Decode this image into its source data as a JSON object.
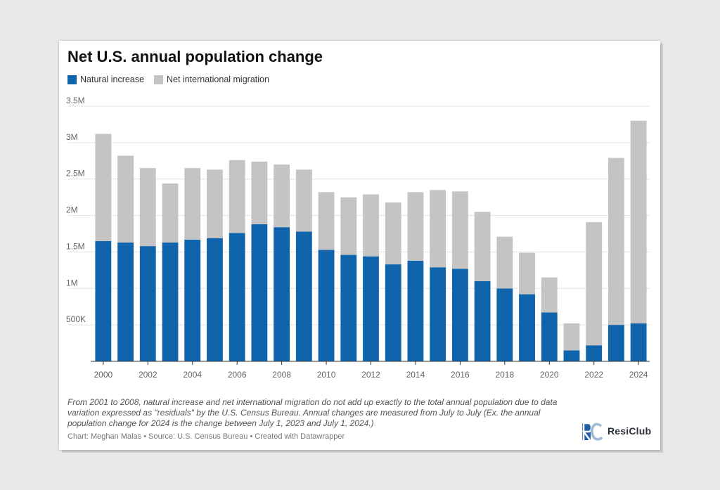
{
  "chart_data": {
    "type": "bar",
    "stacked": true,
    "title": "Net U.S. annual population change",
    "categories": [
      "2000",
      "2001",
      "2002",
      "2003",
      "2004",
      "2005",
      "2006",
      "2007",
      "2008",
      "2009",
      "2010",
      "2011",
      "2012",
      "2013",
      "2014",
      "2015",
      "2016",
      "2017",
      "2018",
      "2019",
      "2020",
      "2021",
      "2022",
      "2023",
      "2024"
    ],
    "x_tick_labels": [
      "2000",
      "2002",
      "2004",
      "2006",
      "2008",
      "2010",
      "2012",
      "2014",
      "2016",
      "2018",
      "2020",
      "2022",
      "2024"
    ],
    "series": [
      {
        "name": "Natural increase",
        "color": "#1064ab",
        "values": [
          1650000,
          1630000,
          1580000,
          1630000,
          1670000,
          1690000,
          1760000,
          1880000,
          1840000,
          1780000,
          1530000,
          1460000,
          1440000,
          1330000,
          1380000,
          1290000,
          1270000,
          1100000,
          1000000,
          920000,
          670000,
          150000,
          220000,
          500000,
          520000
        ]
      },
      {
        "name": "Net international migration",
        "color": "#c4c4c4",
        "values": [
          1470000,
          1190000,
          1070000,
          810000,
          980000,
          940000,
          1000000,
          860000,
          860000,
          850000,
          790000,
          790000,
          850000,
          850000,
          940000,
          1060000,
          1060000,
          950000,
          710000,
          570000,
          480000,
          370000,
          1690000,
          2290000,
          2780000
        ]
      }
    ],
    "ylim": [
      0,
      3500000
    ],
    "y_ticks": [
      {
        "value": 500000,
        "label": "500K"
      },
      {
        "value": 1000000,
        "label": "1M"
      },
      {
        "value": 1500000,
        "label": "1.5M"
      },
      {
        "value": 2000000,
        "label": "2M"
      },
      {
        "value": 2500000,
        "label": "2.5M"
      },
      {
        "value": 3000000,
        "label": "3M"
      },
      {
        "value": 3500000,
        "label": "3.5M"
      }
    ],
    "grid": true,
    "legend_position": "top-left"
  },
  "legend": {
    "natural_label": "Natural increase",
    "migration_label": "Net international migration"
  },
  "footer": {
    "note": "From 2001 to 2008, natural increase and net international migration do not add up exactly to the total annual population due to data variation expressed as \"residuals\" by the U.S. Census Bureau. Annual changes are measured from July to July (Ex. the annual population change for 2024 is the change between July 1, 2023 and July 1, 2024.)",
    "credit": "Chart: Meghan Malas • Source: U.S. Census Bureau • Created with Datawrapper",
    "logo_text": "ResiClub"
  }
}
